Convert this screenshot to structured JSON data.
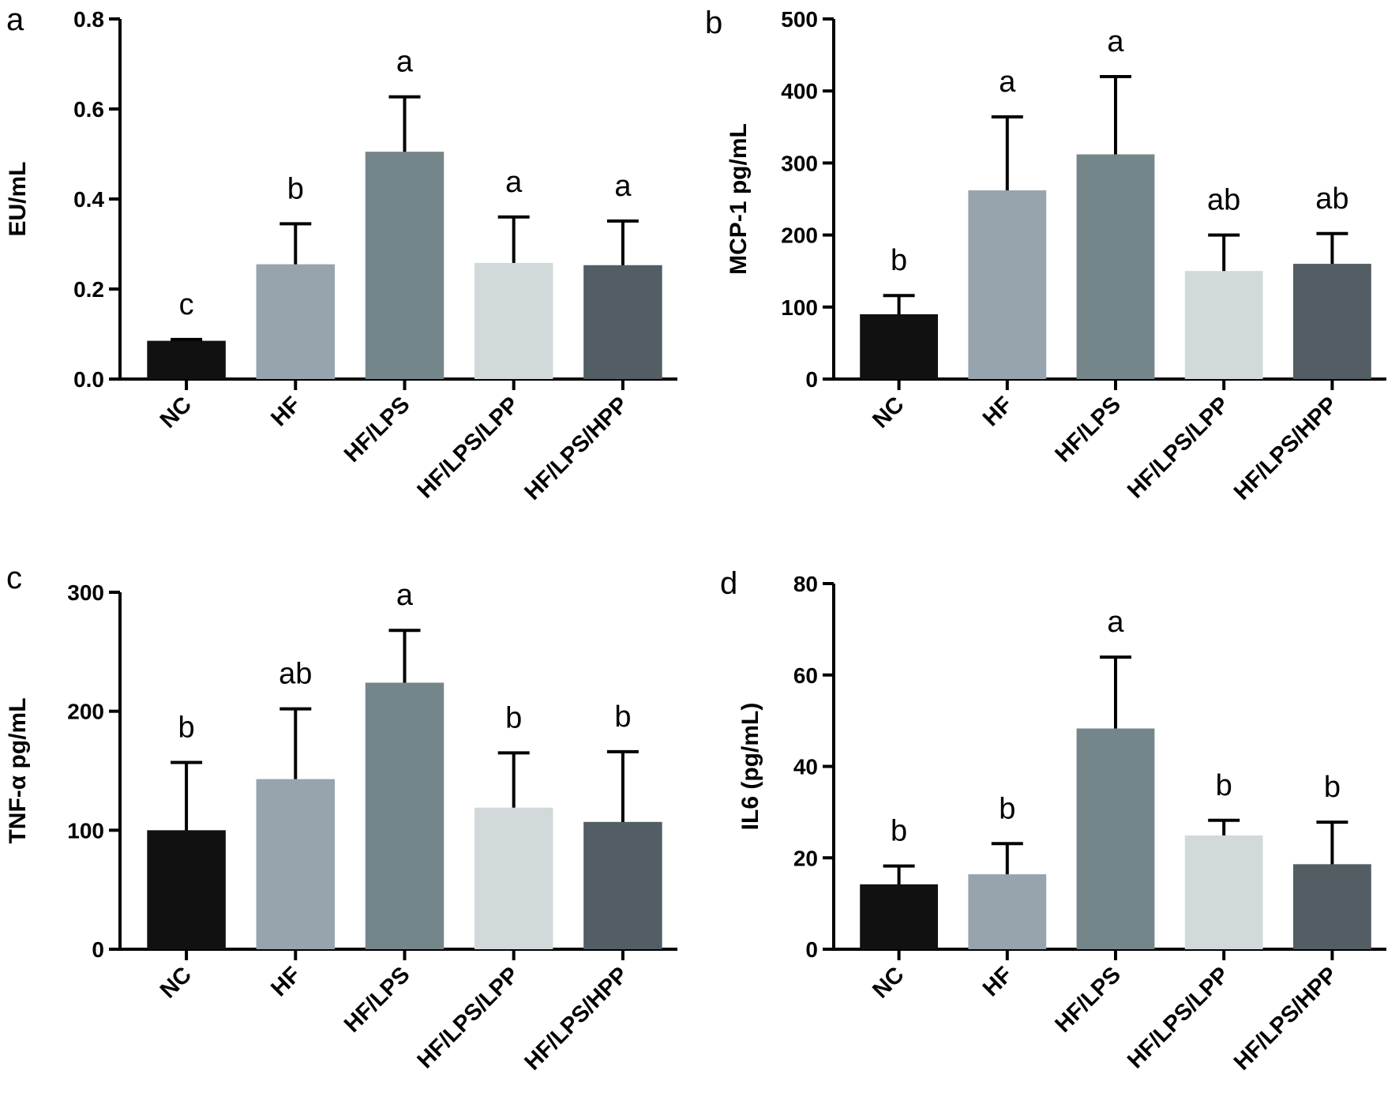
{
  "colors": {
    "NC": "#111111",
    "HF": "#97a4ae",
    "HF/LPS": "#75868b",
    "HF/LPS/LPP": "#d2d9da",
    "HF/LPS/HPP": "#525e63"
  },
  "chart_data": [
    {
      "panel": "a",
      "type": "bar",
      "ylabel": "EU/mL",
      "ylim": [
        0,
        0.8
      ],
      "yticks": [
        "0.0",
        "0.2",
        "0.4",
        "0.6",
        "0.8"
      ],
      "categories": [
        "NC",
        "HF",
        "HF/LPS",
        "HF/LPS/LPP",
        "HF/LPS/HPP"
      ],
      "values": [
        0.085,
        0.255,
        0.505,
        0.258,
        0.253
      ],
      "errors": [
        0.003,
        0.09,
        0.122,
        0.102,
        0.098
      ],
      "annotations": [
        "c",
        "b",
        "a",
        "a",
        "a"
      ]
    },
    {
      "panel": "b",
      "type": "bar",
      "ylabel": "MCP-1 pg/mL",
      "ylim": [
        0,
        500
      ],
      "yticks": [
        "0",
        "100",
        "200",
        "300",
        "400",
        "500"
      ],
      "categories": [
        "NC",
        "HF",
        "HF/LPS",
        "HF/LPS/LPP",
        "HF/LPS/HPP"
      ],
      "values": [
        90,
        262,
        312,
        150,
        160
      ],
      "errors": [
        26,
        102,
        108,
        50,
        42
      ],
      "annotations": [
        "b",
        "a",
        "a",
        "ab",
        "ab"
      ]
    },
    {
      "panel": "c",
      "type": "bar",
      "ylabel": "TNF-α pg/mL",
      "ylim": [
        0,
        300
      ],
      "yticks": [
        "0",
        "100",
        "200",
        "300"
      ],
      "categories": [
        "NC",
        "HF",
        "HF/LPS",
        "HF/LPS/LPP",
        "HF/LPS/HPP"
      ],
      "values": [
        100,
        143,
        224,
        119,
        107
      ],
      "errors": [
        57,
        59,
        44,
        46,
        59
      ],
      "annotations": [
        "b",
        "ab",
        "a",
        "b",
        "b"
      ]
    },
    {
      "panel": "d",
      "type": "bar",
      "ylabel": "IL6 (pg/mL)",
      "ylim": [
        0,
        80
      ],
      "yticks": [
        "0",
        "20",
        "40",
        "60",
        "80"
      ],
      "categories": [
        "NC",
        "HF",
        "HF/LPS",
        "HF/LPS/LPP",
        "HF/LPS/HPP"
      ],
      "values": [
        14.2,
        16.4,
        48.3,
        24.9,
        18.6
      ],
      "errors": [
        4,
        6.7,
        15.6,
        3.3,
        9.2
      ],
      "annotations": [
        "b",
        "b",
        "a",
        "b",
        "b"
      ]
    }
  ]
}
